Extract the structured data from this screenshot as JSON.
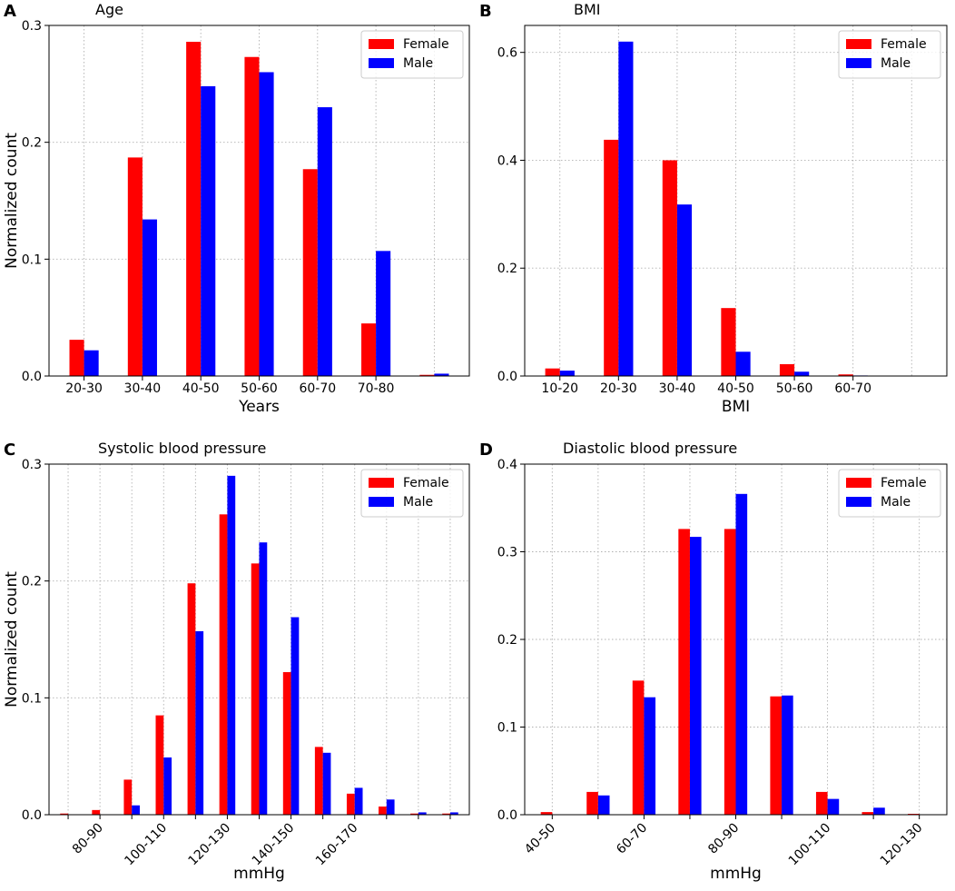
{
  "colors": {
    "female": "#ff0000",
    "male": "#0000ff",
    "grid": "#b0b0b0"
  },
  "chart_data": [
    {
      "panel": "A",
      "type": "bar",
      "title": "Age",
      "xlabel": "Years",
      "ylabel": "Normalized count",
      "ylim": [
        0,
        0.3
      ],
      "yticks": [
        "0.0",
        "0.1",
        "0.2",
        "0.3"
      ],
      "categories": [
        "20-30",
        "30-40",
        "40-50",
        "50-60",
        "60-70",
        "70-80",
        ""
      ],
      "xtick_labels": [
        "20-30",
        "30-40",
        "40-50",
        "50-60",
        "60-70",
        "70-80"
      ],
      "tick_rotation": 0,
      "legend_position": "top-right",
      "series": [
        {
          "name": "Female",
          "values": [
            0.031,
            0.187,
            0.286,
            0.273,
            0.177,
            0.045,
            0.001
          ]
        },
        {
          "name": "Male",
          "values": [
            0.022,
            0.134,
            0.248,
            0.26,
            0.23,
            0.107,
            0.002
          ]
        }
      ]
    },
    {
      "panel": "B",
      "type": "bar",
      "title": "BMI",
      "xlabel": "BMI",
      "ylabel": "",
      "ylim": [
        0,
        0.65
      ],
      "yticks": [
        "0.0",
        "0.2",
        "0.4",
        "0.6"
      ],
      "categories": [
        "10-20",
        "20-30",
        "30-40",
        "40-50",
        "50-60",
        "60-70",
        ""
      ],
      "xtick_labels": [
        "10-20",
        "20-30",
        "30-40",
        "40-50",
        "50-60",
        "60-70"
      ],
      "tick_rotation": 0,
      "legend_position": "top-right",
      "series": [
        {
          "name": "Female",
          "values": [
            0.014,
            0.438,
            0.4,
            0.126,
            0.022,
            0.003,
            0
          ]
        },
        {
          "name": "Male",
          "values": [
            0.01,
            0.62,
            0.318,
            0.045,
            0.008,
            0.001,
            0
          ]
        }
      ]
    },
    {
      "panel": "C",
      "type": "bar",
      "title": "Systolic blood pressure",
      "xlabel": "mmHg",
      "ylabel": "Normalized count",
      "ylim": [
        0,
        0.3
      ],
      "yticks": [
        "0.0",
        "0.1",
        "0.2",
        "0.3"
      ],
      "categories": [
        "70-80",
        "80-90",
        "90-100",
        "100-110",
        "110-120",
        "120-130",
        "130-140",
        "140-150",
        "150-160",
        "160-170",
        "170-180",
        "180-190",
        "190-200"
      ],
      "xtick_labels": [
        "",
        "80-90",
        "",
        "100-110",
        "",
        "120-130",
        "",
        "140-150",
        "",
        "160-170",
        "",
        "",
        ""
      ],
      "tick_rotation": -45,
      "legend_position": "top-right",
      "series": [
        {
          "name": "Female",
          "values": [
            0.001,
            0.004,
            0.03,
            0.085,
            0.198,
            0.257,
            0.215,
            0.122,
            0.058,
            0.018,
            0.007,
            0.001,
            0.001
          ]
        },
        {
          "name": "Male",
          "values": [
            0,
            0,
            0.008,
            0.049,
            0.157,
            0.29,
            0.233,
            0.169,
            0.053,
            0.023,
            0.013,
            0.002,
            0.002
          ]
        }
      ]
    },
    {
      "panel": "D",
      "type": "bar",
      "title": "Diastolic blood pressure",
      "xlabel": "mmHg",
      "ylabel": "",
      "ylim": [
        0,
        0.4
      ],
      "yticks": [
        "0.0",
        "0.1",
        "0.2",
        "0.3",
        "0.4"
      ],
      "categories": [
        "40-50",
        "50-60",
        "60-70",
        "70-80",
        "80-90",
        "90-100",
        "100-110",
        "110-120",
        "120-130"
      ],
      "xtick_labels": [
        "40-50",
        "",
        "60-70",
        "",
        "80-90",
        "",
        "100-110",
        "",
        "120-130"
      ],
      "tick_rotation": -45,
      "legend_position": "top-right",
      "series": [
        {
          "name": "Female",
          "values": [
            0.003,
            0.026,
            0.153,
            0.326,
            0.326,
            0.135,
            0.026,
            0.003,
            0.001
          ]
        },
        {
          "name": "Male",
          "values": [
            0,
            0.022,
            0.134,
            0.317,
            0.366,
            0.136,
            0.018,
            0.008,
            0
          ]
        }
      ]
    }
  ]
}
